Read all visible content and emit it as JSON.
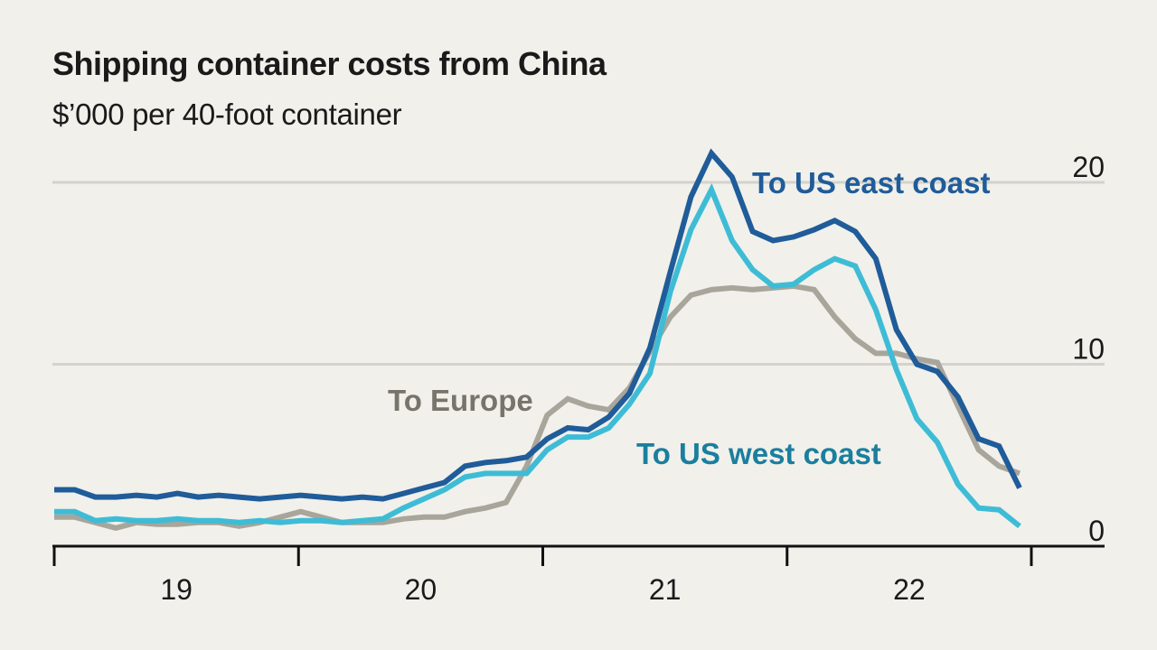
{
  "chart_data": {
    "type": "line",
    "title": "Shipping container costs from China",
    "subtitle": "$’000 per 40-foot container",
    "xlabel": "",
    "ylabel": "$’000 per 40-foot container",
    "ylim": [
      0,
      20
    ],
    "yticks": [
      0,
      10,
      20
    ],
    "ytick_labels": [
      "0",
      "10",
      "20"
    ],
    "y_axis_side": "right",
    "grid": true,
    "x_unit": "month",
    "x_start": "2019-01",
    "xlim_months": [
      0,
      48
    ],
    "xtick_boundaries_months": [
      0,
      12,
      24,
      36,
      48
    ],
    "xtick_labels": [
      "19",
      "20",
      "21",
      "22"
    ],
    "series": [
      {
        "name": "To US east coast",
        "color": "#1f5c99",
        "label_color": "#1f5c99",
        "values": [
          3.1,
          3.1,
          2.7,
          2.7,
          2.8,
          2.7,
          2.9,
          2.7,
          2.8,
          2.7,
          2.6,
          2.7,
          2.8,
          2.7,
          2.6,
          2.7,
          2.6,
          2.9,
          3.2,
          3.5,
          4.4,
          4.6,
          4.7,
          4.9,
          5.9,
          6.5,
          6.4,
          7.1,
          8.4,
          10.9,
          15.1,
          19.2,
          21.6,
          20.3,
          17.3,
          16.8,
          17.0,
          17.4,
          17.9,
          17.3,
          15.8,
          11.9,
          10.0,
          9.6,
          8.2,
          5.9,
          5.5,
          3.2
        ]
      },
      {
        "name": "To US west coast",
        "color": "#3ebcd6",
        "label_color": "#1a7f9e",
        "values": [
          1.9,
          1.9,
          1.4,
          1.5,
          1.4,
          1.4,
          1.5,
          1.4,
          1.4,
          1.3,
          1.4,
          1.3,
          1.4,
          1.4,
          1.3,
          1.4,
          1.5,
          2.1,
          2.6,
          3.1,
          3.8,
          4.0,
          4.0,
          4.0,
          5.3,
          6.0,
          6.0,
          6.5,
          7.8,
          9.5,
          14.0,
          17.4,
          19.6,
          16.8,
          15.2,
          14.3,
          14.4,
          15.2,
          15.8,
          15.4,
          13.0,
          9.7,
          7.0,
          5.7,
          3.4,
          2.1,
          2.0,
          1.1
        ]
      },
      {
        "name": "To Europe",
        "color": "#a8a59b",
        "label_color": "#77756b",
        "values": [
          1.6,
          1.6,
          1.3,
          1.0,
          1.3,
          1.2,
          1.2,
          1.3,
          1.3,
          1.1,
          1.3,
          1.6,
          1.9,
          1.6,
          1.3,
          1.3,
          1.3,
          1.5,
          1.6,
          1.6,
          1.9,
          2.1,
          2.4,
          4.4,
          7.2,
          8.1,
          7.7,
          7.5,
          8.7,
          10.7,
          12.6,
          13.8,
          14.1,
          14.2,
          14.1,
          14.2,
          14.3,
          14.1,
          12.6,
          11.4,
          10.6,
          10.6,
          10.3,
          10.1,
          7.7,
          5.3,
          4.4,
          4.0
        ]
      }
    ],
    "annotations": [
      {
        "text": "To US east coast",
        "series": "To US east coast",
        "anchor_month": 34.5,
        "anchor_value": 20.0
      },
      {
        "text": "To US west coast",
        "series": "To US west coast",
        "anchor_month": 28.5,
        "anchor_value": 5.0
      },
      {
        "text": "To Europe",
        "series": "To Europe",
        "anchor_month": 16.5,
        "anchor_value": 8.0
      }
    ]
  }
}
